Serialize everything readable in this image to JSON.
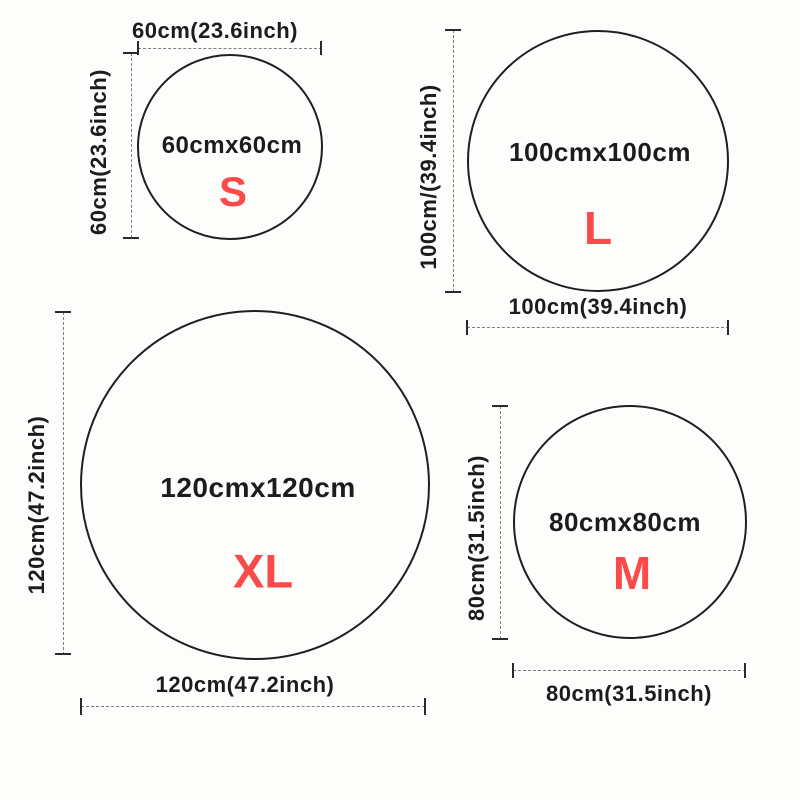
{
  "accent_color": "#fa4a4a",
  "line_color": "#1f1f1f",
  "dash_color": "#7f7f7f",
  "sizes": {
    "s": {
      "size_text": "60cmx60cm",
      "letter": "S",
      "width_label": "60cm(23.6inch)",
      "height_label": "60cm(23.6inch)"
    },
    "l": {
      "size_text": "100cmx100cm",
      "letter": "L",
      "width_label": "100cm(39.4inch)",
      "height_label": "100cm/(39.4inch)"
    },
    "xl": {
      "size_text": "120cmx120cm",
      "letter": "XL",
      "width_label": "120cm(47.2inch)",
      "height_label": "120cm(47.2inch)"
    },
    "m": {
      "size_text": "80cmx80cm",
      "letter": "M",
      "width_label": "80cm(31.5inch)",
      "height_label": "80cm(31.5inch)"
    }
  }
}
